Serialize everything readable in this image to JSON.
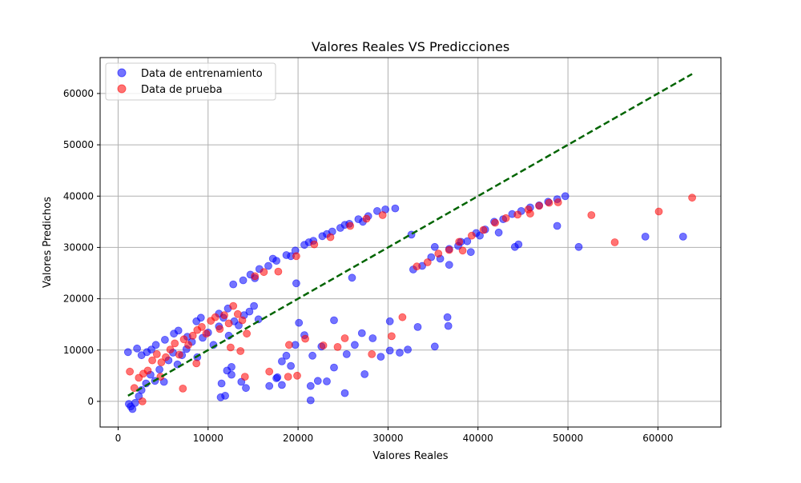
{
  "chart_data": {
    "type": "scatter",
    "title": "Valores Reales VS Predicciones",
    "xlabel": "Valores Reales",
    "ylabel": "Valores Predichos",
    "xlim": [
      -2000,
      67000
    ],
    "ylim": [
      -5000,
      67000
    ],
    "xticks": [
      0,
      10000,
      20000,
      30000,
      40000,
      50000,
      60000
    ],
    "yticks": [
      0,
      10000,
      20000,
      30000,
      40000,
      50000,
      60000
    ],
    "grid": true,
    "legend_position": "top-left",
    "series": [
      {
        "name": "Data de entrenamiento",
        "color": "#0000ff",
        "points": [
          [
            1100,
            9600
          ],
          [
            1200,
            -500
          ],
          [
            1400,
            -1000
          ],
          [
            1600,
            -1500
          ],
          [
            1900,
            -300
          ],
          [
            2300,
            1000
          ],
          [
            2600,
            2200
          ],
          [
            3100,
            3500
          ],
          [
            3600,
            5200
          ],
          [
            4100,
            4000
          ],
          [
            4600,
            6200
          ],
          [
            5100,
            3800
          ],
          [
            5600,
            8000
          ],
          [
            6100,
            9500
          ],
          [
            6600,
            7200
          ],
          [
            7100,
            9000
          ],
          [
            7600,
            10200
          ],
          [
            8200,
            11600
          ],
          [
            8800,
            8600
          ],
          [
            9400,
            12400
          ],
          [
            10000,
            13400
          ],
          [
            10600,
            11000
          ],
          [
            11200,
            14600
          ],
          [
            11700,
            16300
          ],
          [
            12300,
            12800
          ],
          [
            12900,
            15600
          ],
          [
            13400,
            14800
          ],
          [
            14000,
            16800
          ],
          [
            14600,
            17500
          ],
          [
            15100,
            18600
          ],
          [
            15600,
            16000
          ],
          [
            2100,
            10300
          ],
          [
            2600,
            9000
          ],
          [
            3200,
            9600
          ],
          [
            3700,
            10100
          ],
          [
            4200,
            11000
          ],
          [
            5200,
            12000
          ],
          [
            6200,
            13200
          ],
          [
            6700,
            13800
          ],
          [
            7700,
            12600
          ],
          [
            8700,
            15600
          ],
          [
            9200,
            16300
          ],
          [
            11200,
            17100
          ],
          [
            12200,
            18100
          ],
          [
            11500,
            3500
          ],
          [
            12100,
            6000
          ],
          [
            12600,
            6700
          ],
          [
            14200,
            2600
          ],
          [
            11400,
            800
          ],
          [
            11900,
            1100
          ],
          [
            16800,
            3000
          ],
          [
            17600,
            4500
          ],
          [
            18200,
            3200
          ],
          [
            19200,
            6900
          ],
          [
            21400,
            3000
          ],
          [
            22200,
            4000
          ],
          [
            23200,
            3900
          ],
          [
            24000,
            6600
          ],
          [
            25200,
            1600
          ],
          [
            26300,
            11000
          ],
          [
            27400,
            5300
          ],
          [
            28300,
            12300
          ],
          [
            30200,
            9900
          ],
          [
            31300,
            9500
          ],
          [
            32200,
            10100
          ],
          [
            33300,
            14500
          ],
          [
            35200,
            10700
          ],
          [
            36700,
            14700
          ],
          [
            18200,
            7800
          ],
          [
            19700,
            11000
          ],
          [
            20700,
            12900
          ],
          [
            21600,
            8900
          ],
          [
            22600,
            10700
          ],
          [
            25400,
            9200
          ],
          [
            27100,
            13300
          ],
          [
            29200,
            8700
          ],
          [
            30200,
            15600
          ],
          [
            36600,
            16400
          ],
          [
            21400,
            200
          ],
          [
            20100,
            15300
          ],
          [
            24000,
            15800
          ],
          [
            17700,
            4700
          ],
          [
            18700,
            8900
          ],
          [
            12600,
            5200
          ],
          [
            13700,
            3800
          ],
          [
            12800,
            22800
          ],
          [
            13900,
            23600
          ],
          [
            14700,
            24700
          ],
          [
            15700,
            25800
          ],
          [
            16700,
            26400
          ],
          [
            17600,
            27400
          ],
          [
            18700,
            28500
          ],
          [
            19700,
            29400
          ],
          [
            20700,
            30500
          ],
          [
            21700,
            31300
          ],
          [
            22700,
            32200
          ],
          [
            23800,
            33100
          ],
          [
            24700,
            33800
          ],
          [
            25700,
            34600
          ],
          [
            26700,
            35500
          ],
          [
            27800,
            36100
          ],
          [
            28800,
            37100
          ],
          [
            29700,
            37400
          ],
          [
            30800,
            37600
          ],
          [
            15200,
            24000
          ],
          [
            17200,
            27800
          ],
          [
            19200,
            28300
          ],
          [
            21200,
            31000
          ],
          [
            23200,
            32600
          ],
          [
            25200,
            34400
          ],
          [
            27200,
            35000
          ],
          [
            19800,
            23000
          ],
          [
            26000,
            24100
          ],
          [
            32600,
            32500
          ],
          [
            32800,
            25700
          ],
          [
            33800,
            26400
          ],
          [
            34800,
            28100
          ],
          [
            35800,
            27800
          ],
          [
            36800,
            29700
          ],
          [
            37800,
            30300
          ],
          [
            38800,
            31200
          ],
          [
            39800,
            32800
          ],
          [
            40800,
            33500
          ],
          [
            41800,
            35000
          ],
          [
            42800,
            35500
          ],
          [
            43800,
            36500
          ],
          [
            44800,
            37100
          ],
          [
            45800,
            37800
          ],
          [
            46800,
            38200
          ],
          [
            47800,
            38900
          ],
          [
            48800,
            39400
          ],
          [
            49700,
            40000
          ],
          [
            35200,
            30100
          ],
          [
            38100,
            31100
          ],
          [
            40200,
            32300
          ],
          [
            42300,
            32900
          ],
          [
            44100,
            30100
          ],
          [
            44500,
            30600
          ],
          [
            48800,
            34200
          ],
          [
            51200,
            30100
          ],
          [
            58600,
            32100
          ],
          [
            62800,
            32100
          ],
          [
            36800,
            26600
          ],
          [
            39200,
            29100
          ]
        ]
      },
      {
        "name": "Data de prueba",
        "color": "#ff0000",
        "points": [
          [
            1300,
            5800
          ],
          [
            1800,
            2600
          ],
          [
            2300,
            4600
          ],
          [
            2800,
            5400
          ],
          [
            3300,
            6000
          ],
          [
            3800,
            8000
          ],
          [
            4300,
            9200
          ],
          [
            4800,
            7600
          ],
          [
            5300,
            8600
          ],
          [
            5800,
            10100
          ],
          [
            6300,
            11300
          ],
          [
            6800,
            9100
          ],
          [
            7300,
            12100
          ],
          [
            7800,
            11000
          ],
          [
            8300,
            12800
          ],
          [
            8800,
            13900
          ],
          [
            9300,
            14500
          ],
          [
            9800,
            13200
          ],
          [
            10300,
            15700
          ],
          [
            10800,
            16400
          ],
          [
            11300,
            14100
          ],
          [
            11800,
            16800
          ],
          [
            12300,
            15200
          ],
          [
            12800,
            18600
          ],
          [
            13300,
            17000
          ],
          [
            13800,
            15800
          ],
          [
            14300,
            13200
          ],
          [
            2700,
            0
          ],
          [
            7200,
            2500
          ],
          [
            12500,
            10500
          ],
          [
            13600,
            9800
          ],
          [
            14100,
            4800
          ],
          [
            16800,
            5800
          ],
          [
            18900,
            4800
          ],
          [
            19900,
            5000
          ],
          [
            20800,
            12200
          ],
          [
            24400,
            10600
          ],
          [
            25200,
            12300
          ],
          [
            28200,
            9200
          ],
          [
            30400,
            12700
          ],
          [
            31600,
            16400
          ],
          [
            19000,
            11000
          ],
          [
            22800,
            10900
          ],
          [
            4700,
            4800
          ],
          [
            8700,
            7400
          ],
          [
            15200,
            24400
          ],
          [
            16200,
            25200
          ],
          [
            17800,
            25300
          ],
          [
            19800,
            28300
          ],
          [
            21800,
            30600
          ],
          [
            23600,
            32000
          ],
          [
            25800,
            34200
          ],
          [
            27600,
            35600
          ],
          [
            29400,
            36300
          ],
          [
            33200,
            26300
          ],
          [
            34400,
            27100
          ],
          [
            35600,
            28800
          ],
          [
            36800,
            29500
          ],
          [
            37900,
            31100
          ],
          [
            39300,
            32300
          ],
          [
            40600,
            33400
          ],
          [
            41900,
            34800
          ],
          [
            43100,
            35700
          ],
          [
            44400,
            36400
          ],
          [
            45600,
            37400
          ],
          [
            46800,
            38100
          ],
          [
            47900,
            38700
          ],
          [
            48900,
            38800
          ],
          [
            52600,
            36300
          ],
          [
            55200,
            31000
          ],
          [
            60100,
            37000
          ],
          [
            63800,
            39700
          ],
          [
            45800,
            36600
          ],
          [
            38300,
            29400
          ]
        ]
      }
    ],
    "reference_line": {
      "style": "dashed",
      "color": "#006400",
      "x": [
        1100,
        63800
      ],
      "y": [
        1100,
        63800
      ]
    }
  }
}
